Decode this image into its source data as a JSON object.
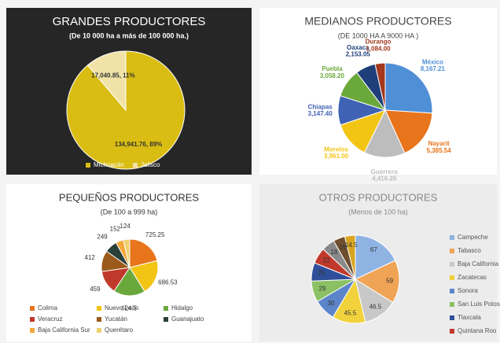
{
  "chart_data": [
    {
      "type": "pie",
      "title": "GRANDES PRODUCTORES",
      "subtitle": "(De 10 000 ha a más de 100 000 ha.)",
      "categories": [
        "Michoacán",
        "Jalisco"
      ],
      "values": [
        134941.76,
        17040.85
      ],
      "value_labels": [
        "134,941.76, 89%",
        "17,040.85, 11%"
      ],
      "colors": [
        "#d9bd12",
        "#f1e3a8"
      ],
      "legend": "bottom"
    },
    {
      "type": "pie",
      "title": "MEDIANOS PRODUCTORES",
      "subtitle": "(DE 1000 HA A 9000 HA )",
      "categories": [
        "México",
        "Nayarit",
        "Guerrero",
        "Morelos",
        "Chiapas",
        "Puebla",
        "Oaxaca",
        "Durango"
      ],
      "values": [
        8167.21,
        5385.54,
        4416.26,
        3961.0,
        3147.4,
        3058.2,
        2153.05,
        1084.0
      ],
      "value_labels": [
        "México, 8,167.21",
        "Nayarit, 5,385.54",
        "Guerrero, 4,416.26",
        "Morelos, 3,961.00",
        "Chiapas, 3,147.40",
        "Puebla, 3,058.20",
        "Oaxaca, 2,153.05",
        "Durango, 1,084.00"
      ],
      "colors": [
        "#4f8fd6",
        "#e8741c",
        "#bdbdbd",
        "#f2c414",
        "#3f62b5",
        "#6aa83c",
        "#1f3f7a",
        "#a3381e"
      ],
      "legend": "none"
    },
    {
      "type": "pie",
      "title": "PEQUEÑOS PRODUCTORES",
      "subtitle": "(De 100 a  999 ha)",
      "categories": [
        "Colima",
        "Nuevo León",
        "Hidalgo",
        "Veracruz",
        "Yucatán",
        "Guanajuato",
        "Baja California Sur",
        "Querétaro"
      ],
      "values": [
        725.25,
        686.53,
        624.5,
        459,
        412,
        249,
        152,
        124
      ],
      "colors": [
        "#e8741c",
        "#f2c414",
        "#6aa83c",
        "#c0392b",
        "#9c5a1a",
        "#2b3f3a",
        "#f4a83a",
        "#f0d070"
      ],
      "legend": "bottom"
    },
    {
      "type": "pie",
      "title": "OTROS PRODUCTORES",
      "subtitle": "(Menos de 100  ha)",
      "categories": [
        "Campeche",
        "Tabasco",
        "Baja California",
        "Zacatecas",
        "Sonora",
        "San Luis Potosí",
        "Tlaxcala",
        "Quintana Roo",
        null,
        null,
        null
      ],
      "values": [
        67,
        59,
        46.5,
        45.5,
        30,
        29,
        25,
        22,
        18,
        16,
        14.5
      ],
      "colors": [
        "#8fb3e3",
        "#f0a456",
        "#c8c8c8",
        "#f2d23c",
        "#5b84c9",
        "#8cc064",
        "#2f4f9a",
        "#c0392b",
        "#8a8a8a",
        "#6e4e2e",
        "#d9a521"
      ],
      "legend": "right"
    }
  ]
}
